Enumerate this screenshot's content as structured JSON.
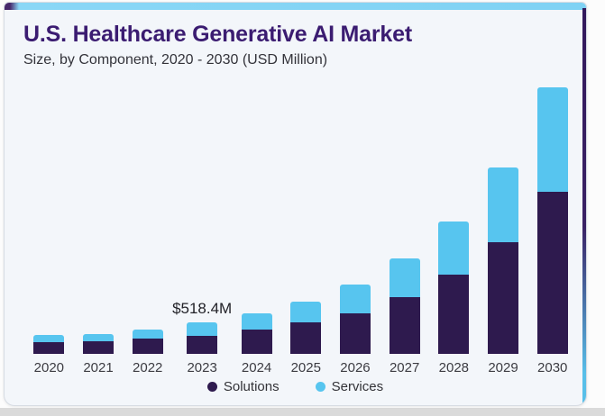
{
  "header": {
    "title": "U.S. Healthcare Generative AI Market",
    "subtitle": "Size, by Component, 2020 - 2030 (USD Million)"
  },
  "chart_data": {
    "type": "bar",
    "stacked": true,
    "unit": "USD Million",
    "grid": false,
    "y_axis_visible": false,
    "legend_position": "bottom",
    "y_max_estimate": 4400,
    "categories": [
      "2020",
      "2021",
      "2022",
      "2023",
      "2024",
      "2025",
      "2026",
      "2027",
      "2028",
      "2029",
      "2030"
    ],
    "series": [
      {
        "name": "Solutions",
        "color": "#2e1a4e",
        "values": [
          193,
          207,
          252,
          296.4,
          400,
          518,
          667,
          933,
          1303,
          1836,
          2666
        ]
      },
      {
        "name": "Services",
        "color": "#57c5ef",
        "values": [
          118,
          119,
          148,
          222,
          267,
          341,
          474,
          637,
          874,
          1229,
          1718
        ]
      }
    ],
    "annotation": {
      "category": "2023",
      "text": "$518.4M"
    }
  },
  "colors": {
    "card_background": "#f3f6fa",
    "title": "#3b1c71",
    "accent_blue": "#7fd2f4",
    "accent_purple": "#46276a"
  }
}
